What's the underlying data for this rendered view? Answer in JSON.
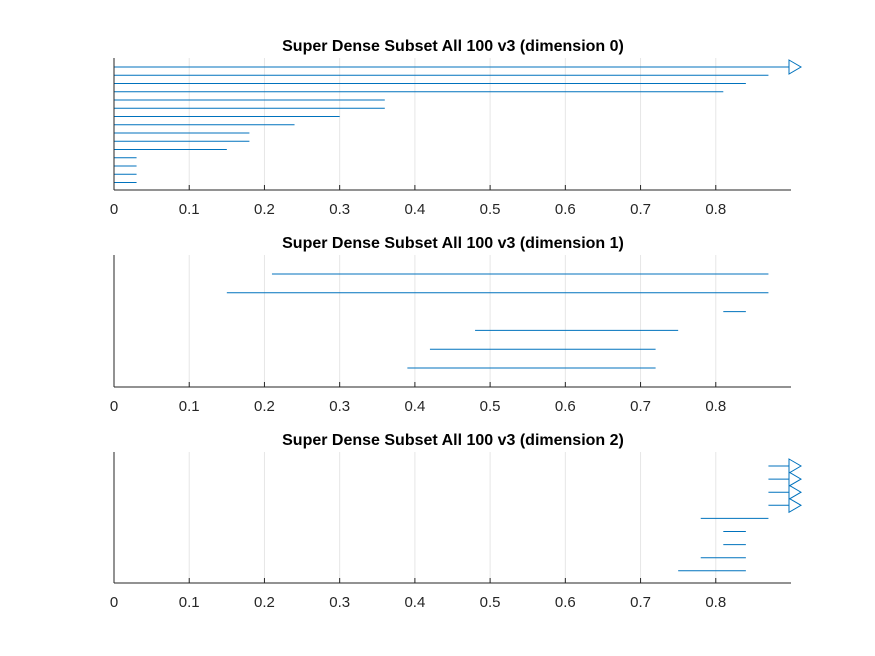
{
  "chart_data": [
    {
      "type": "barcode",
      "title": "Super Dense Subset All 100 v3 (dimension 0)",
      "xlim": [
        0,
        0.9
      ],
      "xticks": [
        0,
        0.1,
        0.2,
        0.3,
        0.4,
        0.5,
        0.6,
        0.7,
        0.8
      ],
      "xtick_labels": [
        "0",
        "0.1",
        "0.2",
        "0.3",
        "0.4",
        "0.5",
        "0.6",
        "0.7",
        "0.8"
      ],
      "grid": true,
      "intervals": [
        {
          "birth": 0,
          "death": null,
          "infinite": true
        },
        {
          "birth": 0,
          "death": 0.87
        },
        {
          "birth": 0,
          "death": 0.84
        },
        {
          "birth": 0,
          "death": 0.81
        },
        {
          "birth": 0,
          "death": 0.36
        },
        {
          "birth": 0,
          "death": 0.36
        },
        {
          "birth": 0,
          "death": 0.3
        },
        {
          "birth": 0,
          "death": 0.24
        },
        {
          "birth": 0,
          "death": 0.18
        },
        {
          "birth": 0,
          "death": 0.18
        },
        {
          "birth": 0,
          "death": 0.15
        },
        {
          "birth": 0,
          "death": 0.03
        },
        {
          "birth": 0,
          "death": 0.03
        },
        {
          "birth": 0,
          "death": 0.03
        },
        {
          "birth": 0,
          "death": 0.03
        }
      ]
    },
    {
      "type": "barcode",
      "title": "Super Dense Subset All 100 v3 (dimension 1)",
      "xlim": [
        0,
        0.9
      ],
      "xticks": [
        0,
        0.1,
        0.2,
        0.3,
        0.4,
        0.5,
        0.6,
        0.7,
        0.8
      ],
      "xtick_labels": [
        "0",
        "0.1",
        "0.2",
        "0.3",
        "0.4",
        "0.5",
        "0.6",
        "0.7",
        "0.8"
      ],
      "grid": true,
      "intervals": [
        {
          "birth": 0.21,
          "death": 0.87
        },
        {
          "birth": 0.15,
          "death": 0.87
        },
        {
          "birth": 0.81,
          "death": 0.84
        },
        {
          "birth": 0.48,
          "death": 0.75
        },
        {
          "birth": 0.42,
          "death": 0.72
        },
        {
          "birth": 0.39,
          "death": 0.72
        }
      ]
    },
    {
      "type": "barcode",
      "title": "Super Dense Subset All 100 v3 (dimension 2)",
      "xlim": [
        0,
        0.9
      ],
      "xticks": [
        0,
        0.1,
        0.2,
        0.3,
        0.4,
        0.5,
        0.6,
        0.7,
        0.8
      ],
      "xtick_labels": [
        "0",
        "0.1",
        "0.2",
        "0.3",
        "0.4",
        "0.5",
        "0.6",
        "0.7",
        "0.8"
      ],
      "grid": true,
      "intervals": [
        {
          "birth": 0.87,
          "death": null,
          "infinite": true
        },
        {
          "birth": 0.87,
          "death": null,
          "infinite": true
        },
        {
          "birth": 0.87,
          "death": null,
          "infinite": true
        },
        {
          "birth": 0.87,
          "death": null,
          "infinite": true
        },
        {
          "birth": 0.78,
          "death": 0.87
        },
        {
          "birth": 0.81,
          "death": 0.84
        },
        {
          "birth": 0.81,
          "death": 0.84
        },
        {
          "birth": 0.78,
          "death": 0.84
        },
        {
          "birth": 0.75,
          "death": 0.84
        }
      ]
    }
  ],
  "colors": {
    "bar": "#0072bd",
    "grid": "#e6e6e6",
    "axis": "#262626",
    "title": "#000000"
  }
}
